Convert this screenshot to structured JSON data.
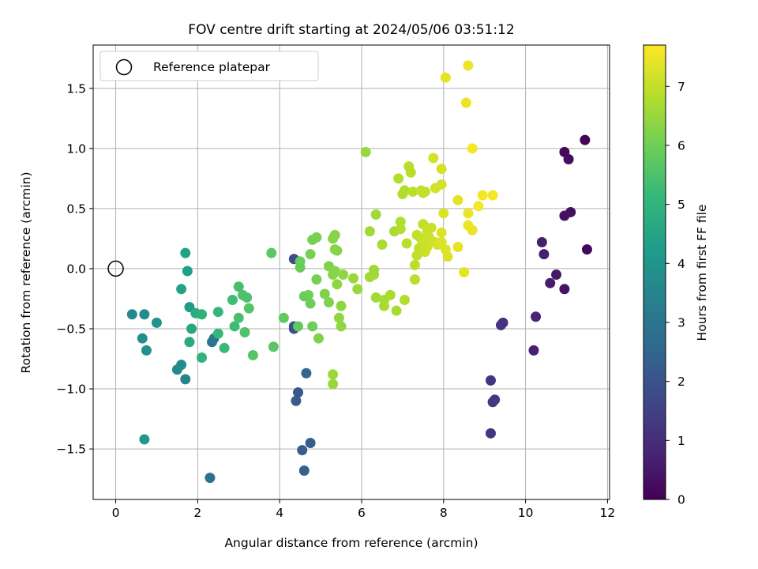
{
  "chart_data": {
    "type": "scatter",
    "title": "FOV centre drift starting at 2024/05/06 03:51:12",
    "xlabel": "Angular distance from reference (arcmin)",
    "ylabel": "Rotation from reference (arcmin)",
    "xlim": [
      -0.55,
      12.05
    ],
    "ylim": [
      -1.92,
      1.86
    ],
    "xticks": [
      0,
      2,
      4,
      6,
      8,
      10,
      12
    ],
    "xtick_labels": [
      "0",
      "2",
      "4",
      "6",
      "8",
      "10",
      "12"
    ],
    "yticks": [
      -1.5,
      -1.0,
      -0.5,
      0.0,
      0.5,
      1.0,
      1.5
    ],
    "ytick_labels": [
      "−1.5",
      "−1.0",
      "−0.5",
      "0.0",
      "0.5",
      "1.0",
      "1.5"
    ],
    "grid": true,
    "legend": {
      "location": "upper-left",
      "entries": [
        {
          "label": "Reference platepar",
          "marker": "open-circle"
        }
      ]
    },
    "reference_point": {
      "x": 0.0,
      "y": 0.0
    },
    "colorbar": {
      "label": "Hours from first FF file",
      "range": [
        0,
        7.7
      ],
      "ticks": [
        0,
        1,
        2,
        3,
        4,
        5,
        6,
        7
      ],
      "tick_labels": [
        "0",
        "1",
        "2",
        "3",
        "4",
        "5",
        "6",
        "7"
      ],
      "colormap": "viridis",
      "colors": [
        "#440154",
        "#482878",
        "#3e4989",
        "#31688e",
        "#26828e",
        "#1f9e89",
        "#35b779",
        "#6ece58",
        "#b5de2b",
        "#fde725"
      ]
    },
    "points": [
      {
        "x": 11.45,
        "y": 1.07,
        "c": 0.1
      },
      {
        "x": 11.5,
        "y": 0.16,
        "c": 0.15
      },
      {
        "x": 10.95,
        "y": 0.97,
        "c": 0.2
      },
      {
        "x": 11.05,
        "y": 0.91,
        "c": 0.25
      },
      {
        "x": 11.1,
        "y": 0.47,
        "c": 0.3
      },
      {
        "x": 10.95,
        "y": 0.44,
        "c": 0.35
      },
      {
        "x": 10.95,
        "y": -0.17,
        "c": 0.4
      },
      {
        "x": 10.75,
        "y": -0.05,
        "c": 0.5
      },
      {
        "x": 10.6,
        "y": -0.12,
        "c": 0.6
      },
      {
        "x": 10.4,
        "y": 0.22,
        "c": 0.65
      },
      {
        "x": 10.45,
        "y": 0.12,
        "c": 0.7
      },
      {
        "x": 10.25,
        "y": -0.4,
        "c": 0.8
      },
      {
        "x": 10.2,
        "y": -0.68,
        "c": 0.7
      },
      {
        "x": 9.45,
        "y": -0.45,
        "c": 1.1
      },
      {
        "x": 9.4,
        "y": -0.47,
        "c": 1.15
      },
      {
        "x": 9.15,
        "y": -0.93,
        "c": 1.2
      },
      {
        "x": 9.25,
        "y": -1.09,
        "c": 1.25
      },
      {
        "x": 9.2,
        "y": -1.11,
        "c": 1.3
      },
      {
        "x": 9.15,
        "y": -1.37,
        "c": 1.2
      },
      {
        "x": 4.35,
        "y": 0.08,
        "c": 1.8
      },
      {
        "x": 4.35,
        "y": -0.48,
        "c": 1.9
      },
      {
        "x": 4.35,
        "y": -0.5,
        "c": 1.95
      },
      {
        "x": 4.45,
        "y": -1.03,
        "c": 2.1
      },
      {
        "x": 4.4,
        "y": -1.1,
        "c": 2.2
      },
      {
        "x": 4.75,
        "y": -1.45,
        "c": 2.3
      },
      {
        "x": 4.55,
        "y": -1.51,
        "c": 2.25
      },
      {
        "x": 4.6,
        "y": -1.68,
        "c": 2.4
      },
      {
        "x": 4.65,
        "y": -0.87,
        "c": 2.5
      },
      {
        "x": 2.3,
        "y": -1.74,
        "c": 2.9
      },
      {
        "x": 2.35,
        "y": -0.61,
        "c": 3.0
      },
      {
        "x": 2.4,
        "y": -0.58,
        "c": 3.1
      },
      {
        "x": 1.5,
        "y": -0.84,
        "c": 3.6
      },
      {
        "x": 1.6,
        "y": -0.8,
        "c": 3.7
      },
      {
        "x": 1.7,
        "y": -0.92,
        "c": 3.5
      },
      {
        "x": 0.4,
        "y": -0.38,
        "c": 3.6
      },
      {
        "x": 0.7,
        "y": -0.38,
        "c": 3.7
      },
      {
        "x": 0.65,
        "y": -0.58,
        "c": 3.8
      },
      {
        "x": 0.75,
        "y": -0.68,
        "c": 3.9
      },
      {
        "x": 1.0,
        "y": -0.45,
        "c": 4.0
      },
      {
        "x": 0.7,
        "y": -1.42,
        "c": 4.1
      },
      {
        "x": 1.8,
        "y": -0.32,
        "c": 4.2
      },
      {
        "x": 1.75,
        "y": -0.02,
        "c": 4.3
      },
      {
        "x": 1.7,
        "y": 0.13,
        "c": 4.4
      },
      {
        "x": 1.6,
        "y": -0.17,
        "c": 4.5
      },
      {
        "x": 1.85,
        "y": -0.5,
        "c": 4.6
      },
      {
        "x": 1.8,
        "y": -0.61,
        "c": 4.7
      },
      {
        "x": 1.95,
        "y": -0.37,
        "c": 4.8
      },
      {
        "x": 2.1,
        "y": -0.38,
        "c": 4.9
      },
      {
        "x": 2.1,
        "y": -0.74,
        "c": 5.0
      },
      {
        "x": 2.5,
        "y": -0.36,
        "c": 5.1
      },
      {
        "x": 2.5,
        "y": -0.54,
        "c": 5.1
      },
      {
        "x": 2.65,
        "y": -0.66,
        "c": 5.2
      },
      {
        "x": 2.85,
        "y": -0.26,
        "c": 5.3
      },
      {
        "x": 2.9,
        "y": -0.48,
        "c": 5.3
      },
      {
        "x": 3.0,
        "y": -0.41,
        "c": 5.4
      },
      {
        "x": 3.0,
        "y": -0.15,
        "c": 5.4
      },
      {
        "x": 3.1,
        "y": -0.22,
        "c": 5.5
      },
      {
        "x": 3.2,
        "y": -0.24,
        "c": 5.5
      },
      {
        "x": 3.15,
        "y": -0.53,
        "c": 5.5
      },
      {
        "x": 3.25,
        "y": -0.33,
        "c": 5.6
      },
      {
        "x": 3.35,
        "y": -0.72,
        "c": 5.6
      },
      {
        "x": 3.8,
        "y": 0.13,
        "c": 5.7
      },
      {
        "x": 3.85,
        "y": -0.65,
        "c": 5.7
      },
      {
        "x": 4.1,
        "y": -0.41,
        "c": 5.8
      },
      {
        "x": 4.45,
        "y": -0.48,
        "c": 5.8
      },
      {
        "x": 4.5,
        "y": 0.06,
        "c": 5.9
      },
      {
        "x": 4.5,
        "y": 0.01,
        "c": 5.9
      },
      {
        "x": 4.6,
        "y": -0.23,
        "c": 5.9
      },
      {
        "x": 4.7,
        "y": -0.22,
        "c": 6.0
      },
      {
        "x": 4.75,
        "y": -0.29,
        "c": 6.0
      },
      {
        "x": 4.8,
        "y": -0.48,
        "c": 6.0
      },
      {
        "x": 4.75,
        "y": 0.12,
        "c": 6.1
      },
      {
        "x": 4.8,
        "y": 0.24,
        "c": 6.1
      },
      {
        "x": 4.9,
        "y": 0.26,
        "c": 6.1
      },
      {
        "x": 4.9,
        "y": -0.09,
        "c": 6.1
      },
      {
        "x": 4.95,
        "y": -0.58,
        "c": 6.2
      },
      {
        "x": 5.1,
        "y": -0.21,
        "c": 6.2
      },
      {
        "x": 5.2,
        "y": 0.02,
        "c": 6.2
      },
      {
        "x": 5.2,
        "y": -0.28,
        "c": 6.2
      },
      {
        "x": 5.3,
        "y": -0.05,
        "c": 6.3
      },
      {
        "x": 5.35,
        "y": -0.02,
        "c": 6.3
      },
      {
        "x": 5.3,
        "y": 0.25,
        "c": 6.3
      },
      {
        "x": 5.35,
        "y": 0.28,
        "c": 6.3
      },
      {
        "x": 5.35,
        "y": 0.16,
        "c": 6.3
      },
      {
        "x": 5.4,
        "y": 0.15,
        "c": 6.3
      },
      {
        "x": 5.4,
        "y": -0.13,
        "c": 6.4
      },
      {
        "x": 5.45,
        "y": -0.41,
        "c": 6.4
      },
      {
        "x": 5.5,
        "y": -0.48,
        "c": 6.4
      },
      {
        "x": 5.5,
        "y": -0.31,
        "c": 6.4
      },
      {
        "x": 5.55,
        "y": -0.05,
        "c": 6.4
      },
      {
        "x": 5.3,
        "y": -0.88,
        "c": 6.5
      },
      {
        "x": 5.3,
        "y": -0.96,
        "c": 6.5
      },
      {
        "x": 5.8,
        "y": -0.08,
        "c": 6.5
      },
      {
        "x": 5.9,
        "y": -0.17,
        "c": 6.5
      },
      {
        "x": 6.1,
        "y": 0.97,
        "c": 6.5
      },
      {
        "x": 6.2,
        "y": 0.31,
        "c": 6.6
      },
      {
        "x": 6.2,
        "y": -0.07,
        "c": 6.6
      },
      {
        "x": 6.3,
        "y": -0.05,
        "c": 6.6
      },
      {
        "x": 6.3,
        "y": -0.01,
        "c": 6.6
      },
      {
        "x": 6.35,
        "y": 0.45,
        "c": 6.6
      },
      {
        "x": 6.35,
        "y": -0.24,
        "c": 6.6
      },
      {
        "x": 6.5,
        "y": 0.2,
        "c": 6.7
      },
      {
        "x": 6.55,
        "y": -0.26,
        "c": 6.7
      },
      {
        "x": 6.55,
        "y": -0.31,
        "c": 6.7
      },
      {
        "x": 6.7,
        "y": -0.22,
        "c": 6.7
      },
      {
        "x": 6.8,
        "y": 0.31,
        "c": 6.7
      },
      {
        "x": 6.85,
        "y": -0.35,
        "c": 6.7
      },
      {
        "x": 6.95,
        "y": 0.39,
        "c": 6.8
      },
      {
        "x": 6.95,
        "y": 0.33,
        "c": 6.8
      },
      {
        "x": 6.9,
        "y": 0.75,
        "c": 6.8
      },
      {
        "x": 7.0,
        "y": 0.62,
        "c": 6.8
      },
      {
        "x": 7.05,
        "y": 0.65,
        "c": 6.8
      },
      {
        "x": 7.05,
        "y": -0.26,
        "c": 6.8
      },
      {
        "x": 7.15,
        "y": 0.85,
        "c": 6.9
      },
      {
        "x": 7.2,
        "y": 0.8,
        "c": 6.9
      },
      {
        "x": 7.1,
        "y": 0.21,
        "c": 6.9
      },
      {
        "x": 7.25,
        "y": 0.64,
        "c": 6.9
      },
      {
        "x": 7.3,
        "y": -0.09,
        "c": 6.9
      },
      {
        "x": 7.3,
        "y": 0.03,
        "c": 6.9
      },
      {
        "x": 7.35,
        "y": 0.11,
        "c": 7.0
      },
      {
        "x": 7.35,
        "y": 0.28,
        "c": 7.0
      },
      {
        "x": 7.4,
        "y": 0.17,
        "c": 7.0
      },
      {
        "x": 7.45,
        "y": 0.25,
        "c": 7.0
      },
      {
        "x": 7.45,
        "y": 0.65,
        "c": 7.0
      },
      {
        "x": 7.5,
        "y": 0.63,
        "c": 7.0
      },
      {
        "x": 7.55,
        "y": 0.64,
        "c": 7.0
      },
      {
        "x": 7.5,
        "y": 0.37,
        "c": 7.0
      },
      {
        "x": 7.55,
        "y": 0.14,
        "c": 7.1
      },
      {
        "x": 7.55,
        "y": 0.23,
        "c": 7.1
      },
      {
        "x": 7.6,
        "y": 0.31,
        "c": 7.1
      },
      {
        "x": 7.6,
        "y": 0.18,
        "c": 7.1
      },
      {
        "x": 7.65,
        "y": 0.26,
        "c": 7.1
      },
      {
        "x": 7.7,
        "y": 0.34,
        "c": 7.1
      },
      {
        "x": 7.75,
        "y": 0.92,
        "c": 7.2
      },
      {
        "x": 7.8,
        "y": 0.67,
        "c": 7.2
      },
      {
        "x": 7.8,
        "y": 0.22,
        "c": 7.2
      },
      {
        "x": 7.85,
        "y": 0.2,
        "c": 7.2
      },
      {
        "x": 7.95,
        "y": 0.83,
        "c": 7.2
      },
      {
        "x": 7.95,
        "y": 0.7,
        "c": 7.2
      },
      {
        "x": 8.0,
        "y": 0.46,
        "c": 7.3
      },
      {
        "x": 7.95,
        "y": 0.3,
        "c": 7.3
      },
      {
        "x": 7.95,
        "y": 0.22,
        "c": 7.3
      },
      {
        "x": 8.05,
        "y": 0.16,
        "c": 7.3
      },
      {
        "x": 8.1,
        "y": 0.1,
        "c": 7.3
      },
      {
        "x": 8.05,
        "y": 1.59,
        "c": 7.4
      },
      {
        "x": 8.35,
        "y": 0.57,
        "c": 7.4
      },
      {
        "x": 8.35,
        "y": 0.18,
        "c": 7.4
      },
      {
        "x": 8.5,
        "y": -0.03,
        "c": 7.4
      },
      {
        "x": 8.55,
        "y": 1.38,
        "c": 7.5
      },
      {
        "x": 8.6,
        "y": 1.69,
        "c": 7.5
      },
      {
        "x": 8.6,
        "y": 0.46,
        "c": 7.5
      },
      {
        "x": 8.6,
        "y": 0.36,
        "c": 7.5
      },
      {
        "x": 8.7,
        "y": 0.32,
        "c": 7.5
      },
      {
        "x": 8.7,
        "y": 1.0,
        "c": 7.6
      },
      {
        "x": 8.85,
        "y": 0.52,
        "c": 7.6
      },
      {
        "x": 8.95,
        "y": 0.61,
        "c": 7.6
      },
      {
        "x": 9.2,
        "y": 0.61,
        "c": 7.6
      }
    ]
  }
}
